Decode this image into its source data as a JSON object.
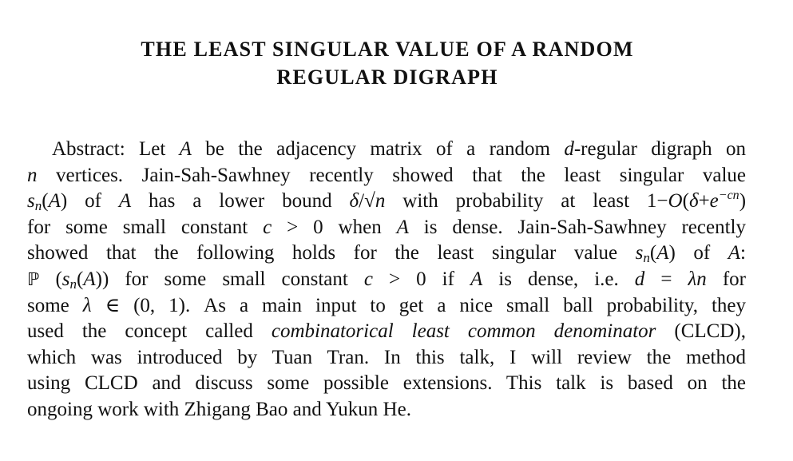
{
  "title": {
    "line1": "THE LEAST SINGULAR VALUE OF A RANDOM",
    "line2": "REGULAR DIGRAPH"
  },
  "abstract": {
    "lines": [
      [
        {
          "t": "Abstract: Let "
        },
        {
          "t": "A",
          "s": "it"
        },
        {
          "t": " be the adjacency matrix of a random "
        },
        {
          "t": "d",
          "s": "it"
        },
        {
          "t": "-regular digraph on"
        }
      ],
      [
        {
          "t": "n",
          "s": "it"
        },
        {
          "t": " vertices. Jain-Sah-Sawhney recently showed that the least singular value"
        }
      ],
      [
        {
          "t": "s",
          "s": "it"
        },
        {
          "t": "n",
          "s": "sub"
        },
        {
          "t": "("
        },
        {
          "t": "A",
          "s": "it"
        },
        {
          "t": ") of "
        },
        {
          "t": "A",
          "s": "it"
        },
        {
          "t": " has a lower bound "
        },
        {
          "t": "δ",
          "s": "it"
        },
        {
          "t": "/√"
        },
        {
          "t": "n",
          "s": "it"
        },
        {
          "t": " with probability at least 1−"
        },
        {
          "t": "O",
          "s": "it"
        },
        {
          "t": "("
        },
        {
          "t": "δ",
          "s": "it"
        },
        {
          "t": "+"
        },
        {
          "t": "e",
          "s": "it"
        },
        {
          "t": "−cn",
          "s": "sup"
        },
        {
          "t": ")"
        }
      ],
      [
        {
          "t": "for some small constant "
        },
        {
          "t": "c",
          "s": "it"
        },
        {
          "t": " > 0 when "
        },
        {
          "t": "A",
          "s": "it"
        },
        {
          "t": " is dense. Jain-Sah-Sawhney recently"
        }
      ],
      [
        {
          "t": "showed that the following holds for the least singular value "
        },
        {
          "t": "s",
          "s": "it"
        },
        {
          "t": "n",
          "s": "sub"
        },
        {
          "t": "("
        },
        {
          "t": "A",
          "s": "it"
        },
        {
          "t": ") of "
        },
        {
          "t": "A",
          "s": "it"
        },
        {
          "t": ":"
        }
      ],
      [
        {
          "t": "ℙ",
          "s": "bb"
        },
        {
          "t": " ("
        },
        {
          "t": "s",
          "s": "it"
        },
        {
          "t": "n",
          "s": "sub"
        },
        {
          "t": "("
        },
        {
          "t": "A",
          "s": "it"
        },
        {
          "t": ")) for some small constant "
        },
        {
          "t": "c",
          "s": "it"
        },
        {
          "t": " > 0 if "
        },
        {
          "t": "A",
          "s": "it"
        },
        {
          "t": " is dense, i.e. "
        },
        {
          "t": "d",
          "s": "it"
        },
        {
          "t": " = "
        },
        {
          "t": "λn",
          "s": "it"
        },
        {
          "t": " for"
        }
      ],
      [
        {
          "t": "some "
        },
        {
          "t": "λ",
          "s": "it"
        },
        {
          "t": " ∈ (0, 1). As a main input to get a nice small ball probability, they"
        }
      ],
      [
        {
          "t": "used the concept called "
        },
        {
          "t": "combinatorical least common denominator",
          "s": "it"
        },
        {
          "t": " (CLCD),"
        }
      ],
      [
        {
          "t": "which was introduced by Tuan Tran. In this talk, I will review the method"
        }
      ],
      [
        {
          "t": "using CLCD and discuss some possible extensions. This talk is based on the"
        }
      ],
      [
        {
          "t": "ongoing work with Zhigang Bao and Yukun He."
        }
      ]
    ]
  }
}
